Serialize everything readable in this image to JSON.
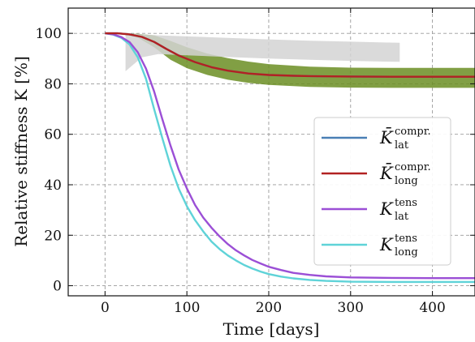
{
  "chart_data": {
    "type": "line",
    "title": "",
    "xlabel": "Time [days]",
    "ylabel": "Relative stiffness K [%]",
    "xlim": [
      -45,
      452
    ],
    "ylim": [
      -4,
      110
    ],
    "xticks": [
      0,
      100,
      200,
      300,
      400
    ],
    "yticks": [
      0,
      20,
      40,
      60,
      80,
      100
    ],
    "grid": true,
    "legend_position": "right",
    "series": [
      {
        "legend_main": "K̄",
        "legend_sup": "compr.",
        "legend_sub": "lat",
        "color": "#4a7fb5",
        "x": [
          0,
          15,
          30,
          45,
          60,
          75,
          90,
          110,
          130,
          150,
          175,
          200,
          230,
          260,
          300,
          350,
          400,
          452
        ],
        "y": [
          100,
          100,
          99.6,
          98.6,
          96.6,
          93.8,
          91.2,
          88.6,
          86.6,
          85.2,
          84.1,
          83.5,
          83.2,
          83.0,
          82.9,
          82.8,
          82.8,
          82.8
        ]
      },
      {
        "legend_main": "K̄",
        "legend_sup": "compr.",
        "legend_sub": "long",
        "color": "#b22222",
        "x": [
          0,
          15,
          30,
          45,
          60,
          75,
          90,
          110,
          130,
          150,
          175,
          200,
          230,
          260,
          300,
          350,
          400,
          452
        ],
        "y": [
          100,
          100,
          99.6,
          98.6,
          96.6,
          93.8,
          91.2,
          88.6,
          86.6,
          85.2,
          84.1,
          83.5,
          83.2,
          83.0,
          82.9,
          82.8,
          82.8,
          82.8
        ]
      },
      {
        "legend_main": "K",
        "legend_sup": "tens",
        "legend_sub": "lat",
        "color": "#9b4fd6",
        "x": [
          0,
          10,
          20,
          30,
          40,
          50,
          60,
          70,
          80,
          90,
          100,
          110,
          120,
          130,
          140,
          150,
          160,
          170,
          180,
          190,
          200,
          215,
          230,
          250,
          270,
          300,
          350,
          400,
          452
        ],
        "y": [
          100,
          99.6,
          98.5,
          96.5,
          92.5,
          86,
          77,
          66,
          55.5,
          46,
          38.5,
          32,
          27,
          23,
          19.5,
          16.5,
          14,
          12,
          10.2,
          8.8,
          7.5,
          6.2,
          5.1,
          4.3,
          3.7,
          3.3,
          3.1,
          3.0,
          3.0
        ]
      },
      {
        "legend_main": "K",
        "legend_sup": "tens",
        "legend_sub": "long",
        "color": "#5fd3d8",
        "x": [
          0,
          10,
          20,
          30,
          40,
          50,
          60,
          70,
          80,
          90,
          100,
          110,
          120,
          130,
          140,
          150,
          160,
          170,
          180,
          190,
          200,
          215,
          230,
          250,
          270,
          300,
          350,
          400,
          452
        ],
        "y": [
          100,
          99.5,
          98.2,
          95.6,
          90.5,
          82,
          70,
          58.5,
          47.5,
          38.5,
          31.5,
          26,
          21.5,
          17.5,
          14.5,
          12,
          10,
          8.2,
          6.8,
          5.6,
          4.6,
          3.6,
          2.9,
          2.3,
          1.9,
          1.6,
          1.5,
          1.5,
          1.5
        ]
      }
    ],
    "bands": [
      {
        "color": "#6b8e23",
        "x": [
          0,
          20,
          40,
          60,
          80,
          100,
          125,
          150,
          175,
          200,
          250,
          300,
          350,
          400,
          452
        ],
        "upper": [
          100,
          100,
          99.8,
          99.2,
          97,
          94.5,
          92,
          90.2,
          88.8,
          87.8,
          86.8,
          86.4,
          86.3,
          86.3,
          86.3
        ],
        "lower": [
          100,
          99.8,
          98.3,
          94.5,
          89.5,
          86.2,
          83.5,
          81.6,
          80.4,
          79.6,
          78.8,
          78.5,
          78.4,
          78.4,
          78.4
        ]
      },
      {
        "color": "#d3d3d3",
        "x": [
          25,
          45,
          65,
          100,
          150,
          200,
          250,
          300,
          340,
          360
        ],
        "upper": [
          100,
          99.6,
          99.2,
          98.8,
          98.2,
          97.6,
          97.1,
          96.7,
          96.4,
          96.3
        ],
        "lower": [
          85,
          90.5,
          91.8,
          91.3,
          90.6,
          90.0,
          89.5,
          89.1,
          88.8,
          88.7
        ]
      }
    ]
  }
}
